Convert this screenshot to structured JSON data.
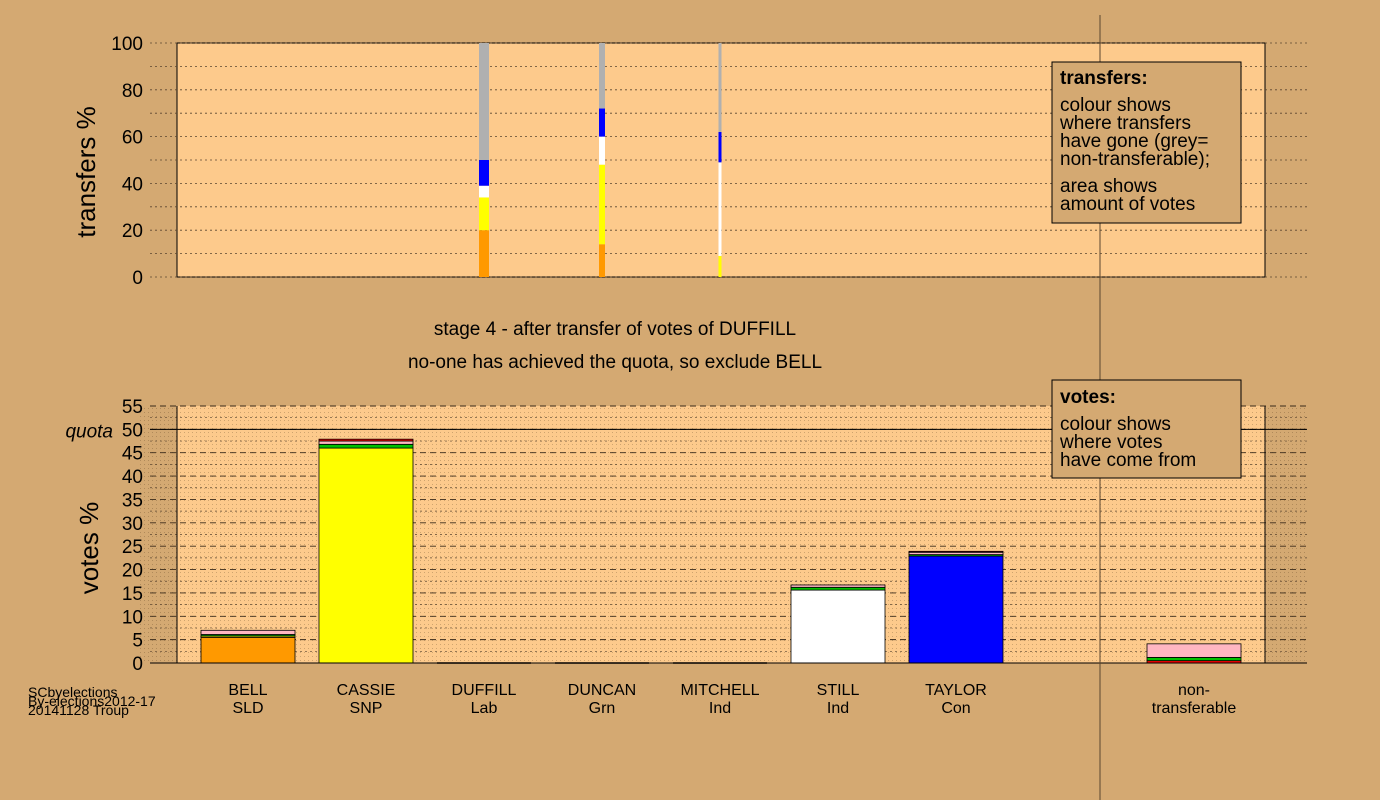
{
  "footer": {
    "line1": "SCbyelections",
    "line2": "By-elections2012-17",
    "line3": "20141128 Troup"
  },
  "stage_title": "stage 4 - after transfer of votes of DUFFILL",
  "stage_subtitle": "no-one has achieved the quota, so exclude BELL",
  "quota_label": "quota",
  "legend_transfers": {
    "title": "transfers:",
    "lines": [
      "colour shows",
      "where transfers",
      "have gone (grey=",
      "non-transferable);",
      "area shows",
      "amount of votes"
    ]
  },
  "legend_votes": {
    "title": "votes:",
    "lines": [
      "colour shows",
      "where votes",
      "have come from"
    ]
  },
  "colors": {
    "background": "#d4a972",
    "plot_bg": "#fdca8c",
    "SLD": "#ff9900",
    "SNP": "#ffff00",
    "Lab": "#ff0000",
    "Grn": "#00c000",
    "Ind_Mitchell": "#ffb6c1",
    "Ind_Still": "#ffffff",
    "Con": "#0000ff",
    "nontransferable": "#b0b0b0"
  },
  "chart_data": [
    {
      "type": "bar",
      "name": "transfers",
      "ylabel": "transfers %",
      "ylim": [
        0,
        100
      ],
      "yticks": [
        0,
        20,
        40,
        60,
        80,
        100
      ],
      "grid": true,
      "columns": [
        {
          "source": "DUFFILL",
          "segments": [
            {
              "to": "BELL",
              "color": "#ff9900",
              "value": 20
            },
            {
              "to": "CASSIE",
              "color": "#ffff00",
              "value": 14
            },
            {
              "to": "STILL",
              "color": "#ffffff",
              "value": 5
            },
            {
              "to": "TAYLOR",
              "color": "#0000ff",
              "value": 11
            },
            {
              "to": "non-transferable",
              "color": "#b0b0b0",
              "value": 50
            }
          ]
        },
        {
          "source": "DUNCAN",
          "segments": [
            {
              "to": "BELL",
              "color": "#ff9900",
              "value": 14
            },
            {
              "to": "CASSIE",
              "color": "#ffff00",
              "value": 34
            },
            {
              "to": "STILL",
              "color": "#ffffff",
              "value": 12
            },
            {
              "to": "TAYLOR",
              "color": "#0000ff",
              "value": 12
            },
            {
              "to": "non-transferable",
              "color": "#b0b0b0",
              "value": 28
            }
          ]
        },
        {
          "source": "MITCHELL",
          "segments": [
            {
              "to": "CASSIE",
              "color": "#ffff00",
              "value": 9
            },
            {
              "to": "STILL",
              "color": "#ffffff",
              "value": 40
            },
            {
              "to": "TAYLOR",
              "color": "#0000ff",
              "value": 13
            },
            {
              "to": "non-transferable",
              "color": "#b0b0b0",
              "value": 38
            }
          ]
        }
      ]
    },
    {
      "type": "bar",
      "name": "votes",
      "ylabel": "votes %",
      "ylim": [
        0,
        55
      ],
      "yticks": [
        0,
        5,
        10,
        15,
        20,
        25,
        30,
        35,
        40,
        45,
        50,
        55
      ],
      "quota": 50,
      "grid": true,
      "categories": [
        {
          "name": "BELL",
          "party": "SLD",
          "segments": [
            {
              "from": "BELL",
              "color": "#ff9900",
              "value": 5.5
            },
            {
              "from": "CASSIE",
              "color": "#ffff00",
              "value": 0.3
            },
            {
              "from": "DUNCAN",
              "color": "#00c000",
              "value": 0.3
            },
            {
              "from": "MITCHELL",
              "color": "#ffb6c1",
              "value": 0.9
            }
          ]
        },
        {
          "name": "CASSIE",
          "party": "SNP",
          "segments": [
            {
              "from": "CASSIE",
              "color": "#ffff00",
              "value": 46
            },
            {
              "from": "DUNCAN",
              "color": "#00c000",
              "value": 0.8
            },
            {
              "from": "MITCHELL",
              "color": "#ffb6c1",
              "value": 0.7
            },
            {
              "from": "DUFFILL",
              "color": "#ff0000",
              "value": 0.4
            }
          ]
        },
        {
          "name": "DUFFILL",
          "party": "Lab",
          "segments": []
        },
        {
          "name": "DUNCAN",
          "party": "Grn",
          "segments": []
        },
        {
          "name": "MITCHELL",
          "party": "Ind",
          "segments": []
        },
        {
          "name": "STILL",
          "party": "Ind",
          "segments": [
            {
              "from": "STILL",
              "color": "#ffffff",
              "value": 15.6
            },
            {
              "from": "DUNCAN",
              "color": "#00c000",
              "value": 0.6
            },
            {
              "from": "MITCHELL",
              "color": "#ffb6c1",
              "value": 0.5
            }
          ]
        },
        {
          "name": "TAYLOR",
          "party": "Con",
          "segments": [
            {
              "from": "TAYLOR",
              "color": "#0000ff",
              "value": 22.9
            },
            {
              "from": "DUNCAN",
              "color": "#00c000",
              "value": 0.3
            },
            {
              "from": "MITCHELL",
              "color": "#ffb6c1",
              "value": 0.5
            },
            {
              "from": "DUFFILL",
              "color": "#ff0000",
              "value": 0.2
            }
          ]
        },
        {
          "name": "non-",
          "party": "transferable",
          "segments": [
            {
              "from": "DUFFILL",
              "color": "#ff0000",
              "value": 0.5
            },
            {
              "from": "DUNCAN",
              "color": "#00c000",
              "value": 0.7
            },
            {
              "from": "MITCHELL",
              "color": "#ffb6c1",
              "value": 2.9
            }
          ]
        }
      ]
    }
  ]
}
